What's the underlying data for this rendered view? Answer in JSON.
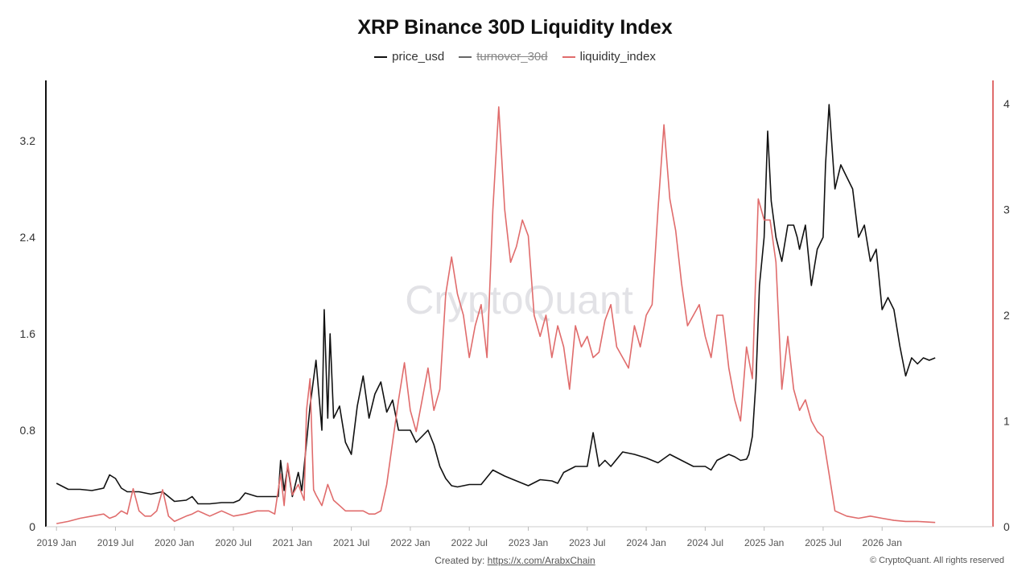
{
  "chart_data": {
    "type": "line",
    "title": "XRP Binance 30D Liquidity Index",
    "watermark": "CryptoQuant",
    "created_by_label": "Created by:",
    "created_by_link": "https://x.com/ArabxChain",
    "copyright": "© CryptoQuant. All rights reserved",
    "x_tick_labels": [
      "2019 Jan",
      "2019 Jul",
      "2020 Jan",
      "2020 Jul",
      "2021 Jan",
      "2021 Jul",
      "2022 Jan",
      "2022 Jul",
      "2023 Jan",
      "2023 Jul",
      "2024 Jan",
      "2024 Jul",
      "2025 Jan",
      "2025 Jul",
      "2026 Jan"
    ],
    "x_tick_values": [
      2019.0,
      2019.5,
      2020.0,
      2020.5,
      2021.0,
      2021.5,
      2022.0,
      2022.5,
      2023.0,
      2023.5,
      2024.0,
      2024.5,
      2025.0,
      2025.5,
      2026.0
    ],
    "xlim": [
      2018.91,
      2026.94
    ],
    "y_left": {
      "ticks": [
        0,
        0.8,
        1.6,
        2.4,
        3.2
      ],
      "tick_labels": [
        "0",
        "0.8",
        "1.6",
        "2.4",
        "3.2"
      ],
      "ylim": [
        0,
        3.7
      ]
    },
    "y_right": {
      "ticks": [
        0,
        1,
        2,
        3,
        4
      ],
      "tick_labels": [
        "0",
        "1",
        "2",
        "3",
        "4"
      ],
      "ylim": [
        0,
        4.22
      ]
    },
    "legend_position": "top-center",
    "grid": false,
    "series": [
      {
        "name": "price_usd",
        "axis": "left",
        "color": "#111111",
        "visible": true,
        "x": [
          2019.0,
          2019.1,
          2019.2,
          2019.3,
          2019.4,
          2019.45,
          2019.5,
          2019.55,
          2019.6,
          2019.7,
          2019.8,
          2019.9,
          2020.0,
          2020.1,
          2020.15,
          2020.2,
          2020.3,
          2020.4,
          2020.5,
          2020.55,
          2020.6,
          2020.7,
          2020.8,
          2020.88,
          2020.9,
          2020.93,
          2020.96,
          2021.0,
          2021.05,
          2021.08,
          2021.1,
          2021.15,
          2021.2,
          2021.25,
          2021.27,
          2021.3,
          2021.32,
          2021.35,
          2021.4,
          2021.45,
          2021.5,
          2021.55,
          2021.6,
          2021.65,
          2021.7,
          2021.75,
          2021.8,
          2021.85,
          2021.9,
          2022.0,
          2022.05,
          2022.1,
          2022.15,
          2022.2,
          2022.25,
          2022.3,
          2022.35,
          2022.4,
          2022.45,
          2022.5,
          2022.6,
          2022.7,
          2022.8,
          2022.9,
          2023.0,
          2023.1,
          2023.2,
          2023.25,
          2023.3,
          2023.4,
          2023.5,
          2023.55,
          2023.6,
          2023.65,
          2023.7,
          2023.8,
          2023.9,
          2024.0,
          2024.1,
          2024.2,
          2024.3,
          2024.4,
          2024.5,
          2024.55,
          2024.6,
          2024.7,
          2024.75,
          2024.8,
          2024.85,
          2024.87,
          2024.9,
          2024.93,
          2024.96,
          2025.0,
          2025.03,
          2025.06,
          2025.1,
          2025.15,
          2025.2,
          2025.25,
          2025.28,
          2025.3,
          2025.35,
          2025.4,
          2025.45,
          2025.5,
          2025.52,
          2025.55,
          2025.6,
          2025.65,
          2025.7,
          2025.75,
          2025.8,
          2025.85,
          2025.9,
          2025.95,
          2025.98,
          2026.0,
          2026.05,
          2026.1,
          2026.15,
          2026.2,
          2026.25,
          2026.3,
          2026.35,
          2026.4,
          2026.45
        ],
        "y": [
          0.36,
          0.31,
          0.31,
          0.3,
          0.32,
          0.43,
          0.4,
          0.32,
          0.29,
          0.29,
          0.27,
          0.29,
          0.21,
          0.22,
          0.25,
          0.19,
          0.19,
          0.2,
          0.2,
          0.22,
          0.28,
          0.25,
          0.25,
          0.25,
          0.55,
          0.3,
          0.5,
          0.25,
          0.45,
          0.3,
          0.5,
          1.0,
          1.38,
          0.8,
          1.8,
          0.9,
          1.6,
          0.9,
          1.0,
          0.7,
          0.6,
          1.0,
          1.25,
          0.9,
          1.1,
          1.2,
          0.95,
          1.05,
          0.8,
          0.8,
          0.7,
          0.75,
          0.8,
          0.68,
          0.5,
          0.4,
          0.34,
          0.33,
          0.34,
          0.35,
          0.35,
          0.47,
          0.42,
          0.38,
          0.34,
          0.39,
          0.38,
          0.36,
          0.45,
          0.5,
          0.5,
          0.78,
          0.5,
          0.55,
          0.5,
          0.62,
          0.6,
          0.57,
          0.53,
          0.6,
          0.55,
          0.5,
          0.5,
          0.47,
          0.55,
          0.6,
          0.58,
          0.55,
          0.56,
          0.6,
          0.75,
          1.2,
          2.0,
          2.4,
          3.28,
          2.7,
          2.4,
          2.2,
          2.5,
          2.5,
          2.4,
          2.3,
          2.5,
          2.0,
          2.3,
          2.4,
          3.0,
          3.5,
          2.8,
          3.0,
          2.9,
          2.8,
          2.4,
          2.5,
          2.2,
          2.3,
          2.0,
          1.8,
          1.9,
          1.8,
          1.5,
          1.25,
          1.4,
          1.35,
          1.4,
          1.38,
          1.4
        ]
      },
      {
        "name": "turnover_30d",
        "axis": "right",
        "color": "#666666",
        "visible": false,
        "x": [],
        "y": []
      },
      {
        "name": "liquidity_index",
        "axis": "right",
        "color": "#e06c6c",
        "visible": true,
        "x": [
          2019.0,
          2019.1,
          2019.2,
          2019.3,
          2019.4,
          2019.45,
          2019.5,
          2019.55,
          2019.6,
          2019.65,
          2019.7,
          2019.75,
          2019.8,
          2019.85,
          2019.9,
          2019.95,
          2020.0,
          2020.1,
          2020.15,
          2020.2,
          2020.3,
          2020.4,
          2020.5,
          2020.6,
          2020.7,
          2020.75,
          2020.8,
          2020.85,
          2020.9,
          2020.93,
          2020.96,
          2021.0,
          2021.05,
          2021.1,
          2021.12,
          2021.15,
          2021.18,
          2021.2,
          2021.25,
          2021.3,
          2021.35,
          2021.4,
          2021.45,
          2021.5,
          2021.55,
          2021.6,
          2021.65,
          2021.7,
          2021.75,
          2021.8,
          2021.85,
          2021.9,
          2021.95,
          2022.0,
          2022.05,
          2022.1,
          2022.15,
          2022.2,
          2022.25,
          2022.3,
          2022.35,
          2022.4,
          2022.45,
          2022.5,
          2022.55,
          2022.6,
          2022.65,
          2022.7,
          2022.75,
          2022.8,
          2022.85,
          2022.9,
          2022.95,
          2023.0,
          2023.05,
          2023.1,
          2023.15,
          2023.2,
          2023.25,
          2023.3,
          2023.35,
          2023.4,
          2023.45,
          2023.5,
          2023.55,
          2023.6,
          2023.65,
          2023.7,
          2023.75,
          2023.8,
          2023.85,
          2023.9,
          2023.95,
          2024.0,
          2024.05,
          2024.1,
          2024.15,
          2024.2,
          2024.25,
          2024.3,
          2024.35,
          2024.4,
          2024.45,
          2024.5,
          2024.55,
          2024.6,
          2024.65,
          2024.7,
          2024.75,
          2024.8,
          2024.85,
          2024.9,
          2024.95,
          2025.0,
          2025.05,
          2025.1,
          2025.15,
          2025.2,
          2025.25,
          2025.3,
          2025.35,
          2025.4,
          2025.45,
          2025.5,
          2025.55,
          2025.6,
          2025.7,
          2025.8,
          2025.9,
          2026.0,
          2026.1,
          2026.2,
          2026.3,
          2026.45
        ],
        "y": [
          0.03,
          0.05,
          0.08,
          0.1,
          0.12,
          0.08,
          0.1,
          0.15,
          0.12,
          0.36,
          0.15,
          0.1,
          0.1,
          0.15,
          0.35,
          0.1,
          0.05,
          0.1,
          0.12,
          0.15,
          0.1,
          0.15,
          0.1,
          0.12,
          0.15,
          0.15,
          0.15,
          0.12,
          0.5,
          0.2,
          0.6,
          0.3,
          0.4,
          0.25,
          1.1,
          1.4,
          0.35,
          0.3,
          0.2,
          0.4,
          0.25,
          0.2,
          0.15,
          0.15,
          0.15,
          0.15,
          0.12,
          0.12,
          0.15,
          0.4,
          0.8,
          1.2,
          1.55,
          1.1,
          0.9,
          1.2,
          1.5,
          1.1,
          1.3,
          2.2,
          2.55,
          2.2,
          2.0,
          1.6,
          1.9,
          2.1,
          1.6,
          3.0,
          3.97,
          3.0,
          2.5,
          2.65,
          2.9,
          2.75,
          2.0,
          1.8,
          2.0,
          1.6,
          1.9,
          1.7,
          1.3,
          1.9,
          1.7,
          1.8,
          1.6,
          1.65,
          1.95,
          2.1,
          1.7,
          1.6,
          1.5,
          1.9,
          1.7,
          2.0,
          2.1,
          3.0,
          3.8,
          3.1,
          2.8,
          2.3,
          1.9,
          2.0,
          2.1,
          1.8,
          1.6,
          2.0,
          2.0,
          1.5,
          1.2,
          1.0,
          1.7,
          1.4,
          3.1,
          2.9,
          2.9,
          2.5,
          1.3,
          1.8,
          1.3,
          1.1,
          1.2,
          1.0,
          0.9,
          0.85,
          0.5,
          0.15,
          0.1,
          0.08,
          0.1,
          0.08,
          0.06,
          0.05,
          0.05,
          0.04
        ]
      }
    ]
  }
}
